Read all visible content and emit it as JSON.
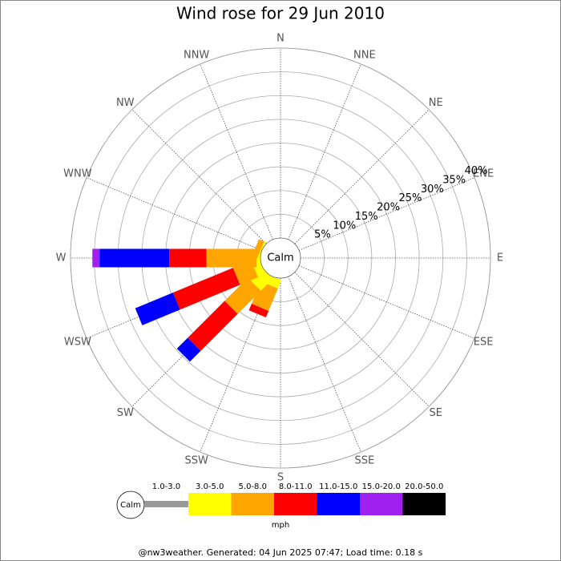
{
  "chart_data": {
    "type": "windrose",
    "title": "Wind rose for 29 Jun 2010",
    "calm_label": "Calm",
    "categories": [
      "N",
      "NNE",
      "NE",
      "ENE",
      "E",
      "ESE",
      "SE",
      "SSE",
      "S",
      "SSW",
      "SW",
      "WSW",
      "W",
      "WNW",
      "NW",
      "NNW"
    ],
    "rlim": [
      0,
      40
    ],
    "rticks": [
      {
        "value": 5,
        "label": "5%"
      },
      {
        "value": 10,
        "label": "10%"
      },
      {
        "value": 15,
        "label": "15%"
      },
      {
        "value": 20,
        "label": "20%"
      },
      {
        "value": 25,
        "label": "25%"
      },
      {
        "value": 30,
        "label": "30%"
      },
      {
        "value": 35,
        "label": "35%"
      },
      {
        "value": 40,
        "label": "40%"
      }
    ],
    "series": [
      {
        "name": "1.0-3.0",
        "color": "#999999",
        "values": [
          0,
          0,
          0,
          0,
          0,
          0,
          0,
          0,
          0,
          0,
          0,
          0,
          0,
          0,
          0,
          0
        ]
      },
      {
        "name": "3.0-5.0",
        "color": "#ffff00",
        "values": [
          0,
          0,
          0,
          0,
          0,
          0,
          0,
          0,
          0,
          1.9,
          3.6,
          1.7,
          0.8,
          0.3,
          0,
          0
        ]
      },
      {
        "name": "5.0-8.0",
        "color": "#ffa500",
        "values": [
          0,
          0,
          0,
          0,
          0,
          0,
          0,
          0,
          0,
          5.1,
          6.9,
          4.1,
          10.6,
          1.2,
          0,
          0
        ]
      },
      {
        "name": "8.0-11.0",
        "color": "#ff0000",
        "values": [
          0,
          0,
          0,
          0,
          0,
          0,
          0,
          0,
          0,
          1.5,
          11,
          13.7,
          7.8,
          0,
          0,
          0
        ]
      },
      {
        "name": "11.0-15.0",
        "color": "#0000ff",
        "values": [
          0,
          0,
          0,
          0,
          0,
          0,
          0,
          0,
          0,
          0,
          3.2,
          8.6,
          14.7,
          0,
          0,
          0
        ]
      },
      {
        "name": "15.0-20.0",
        "color": "#a020f0",
        "values": [
          0,
          0,
          0,
          0,
          0,
          0,
          0,
          0,
          0,
          0,
          0,
          0,
          1.5,
          0,
          0,
          0
        ]
      },
      {
        "name": "20.0-50.0",
        "color": "#000000",
        "values": [
          0,
          0,
          0,
          0,
          0,
          0,
          0,
          0,
          0,
          0,
          0,
          0,
          0,
          0,
          0,
          0
        ]
      }
    ],
    "units": "mph",
    "footer": "@nw3weather. Generated: 04 Jun 2025 07:47; Load time: 0.18 s"
  }
}
